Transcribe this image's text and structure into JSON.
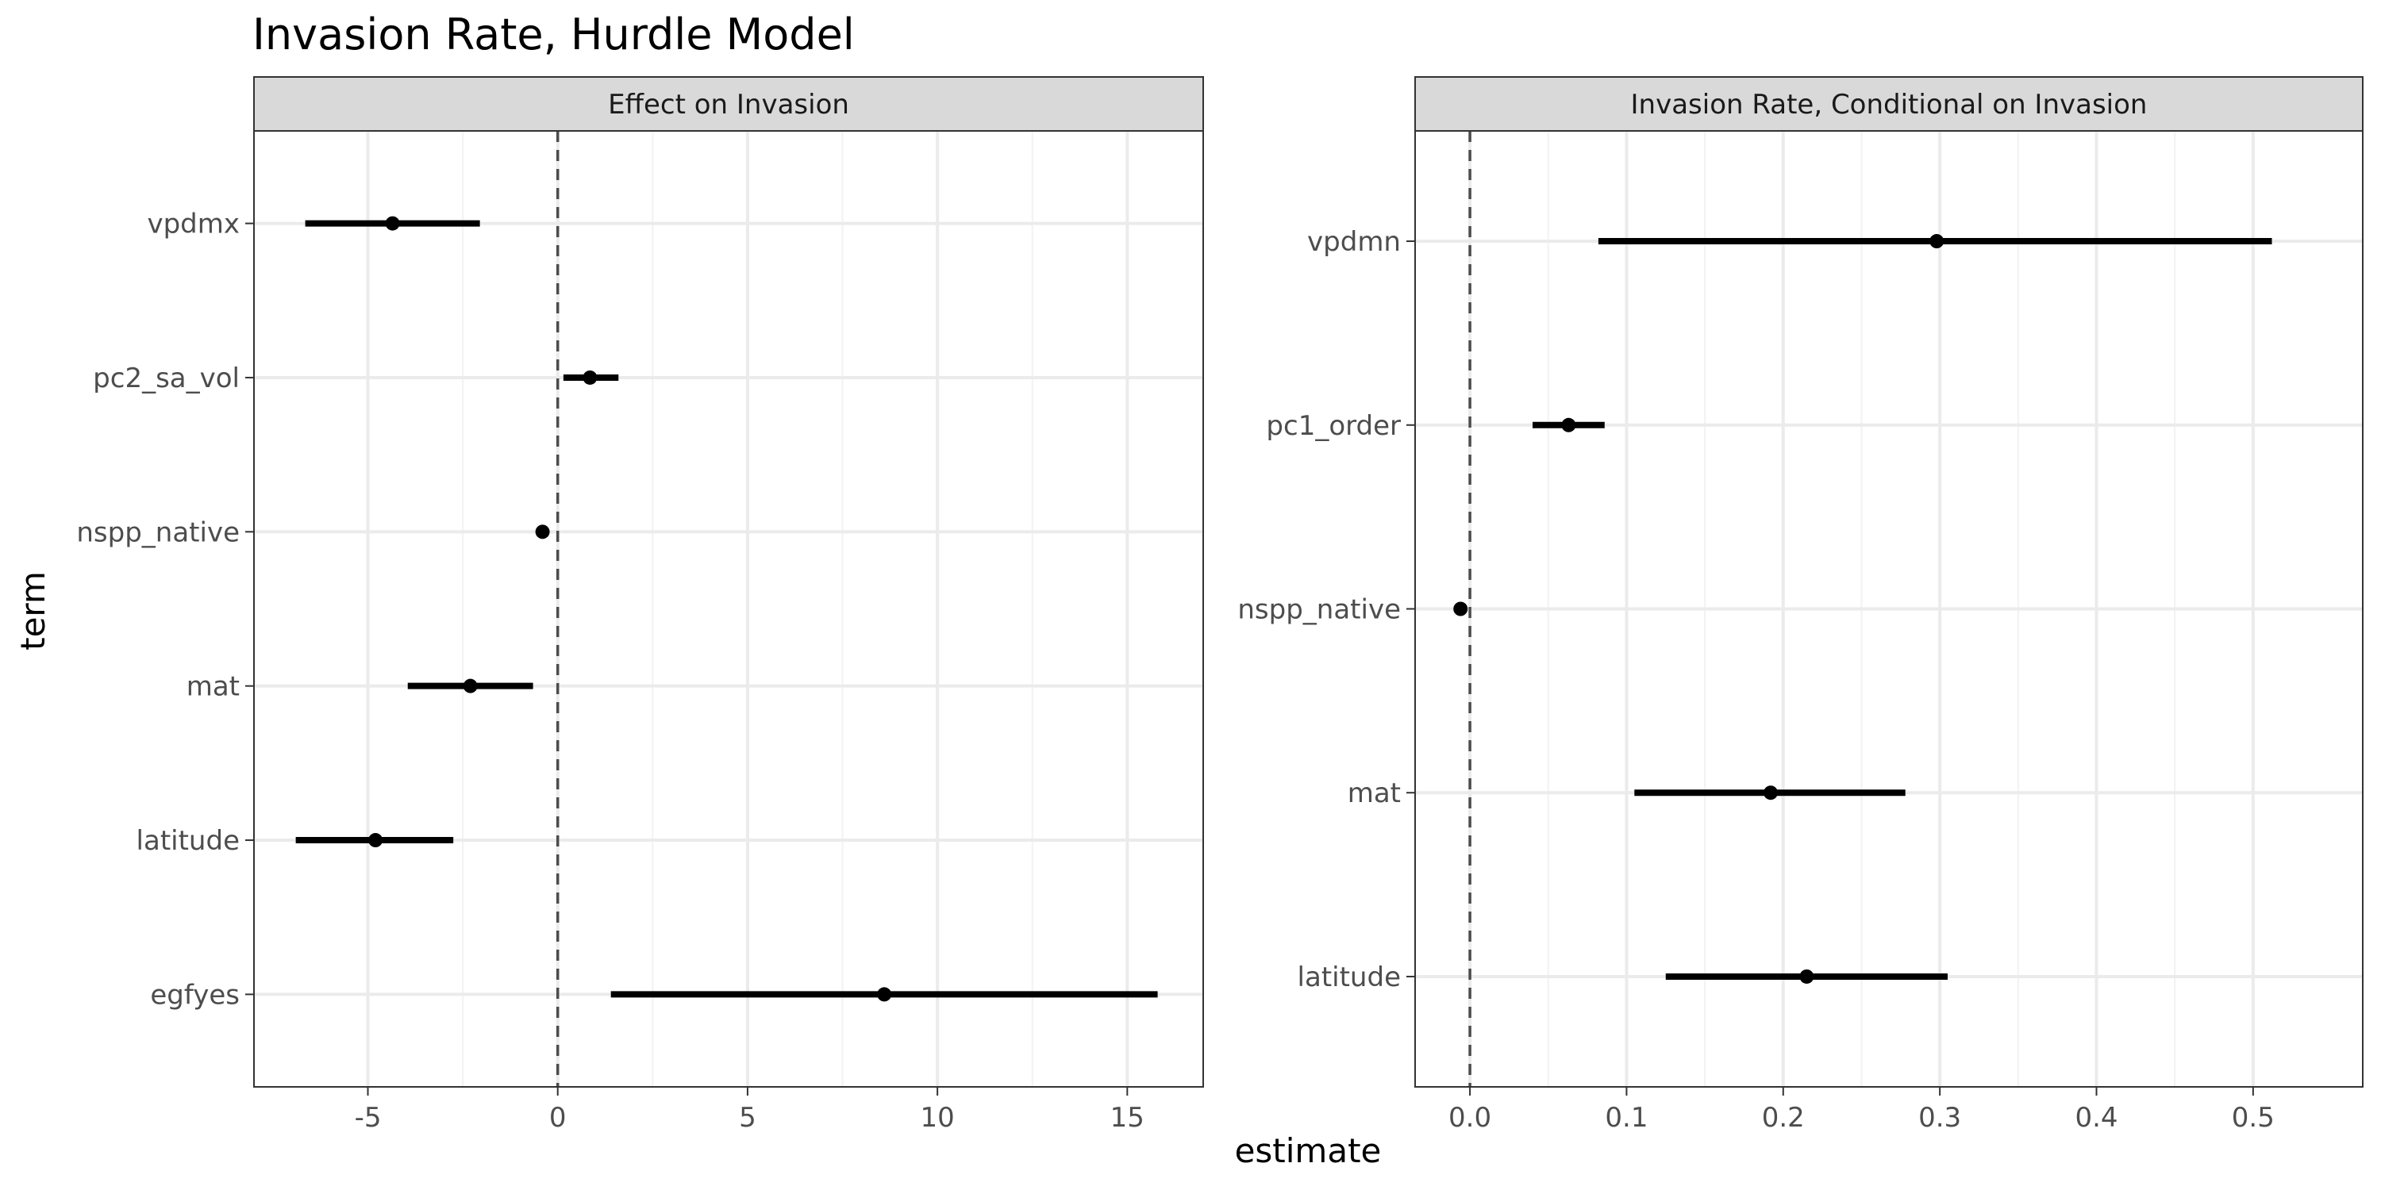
{
  "chart_data": {
    "type": "scatter",
    "title": "Invasion Rate, Hurdle Model",
    "xlabel": "estimate",
    "ylabel": "term",
    "grid": true,
    "reference_line": 0,
    "panels": [
      {
        "strip": "Effect on Invasion",
        "xlim": [
          -8.0,
          17.0
        ],
        "xticks": [
          -5,
          0,
          5,
          10,
          15
        ],
        "xtick_labels": [
          "-5",
          "0",
          "5",
          "10",
          "15"
        ],
        "terms": [
          "egfyes",
          "latitude",
          "mat",
          "nspp_native",
          "pc2_sa_vol",
          "vpdmx"
        ],
        "estimates": [
          8.6,
          -4.8,
          -2.3,
          -0.4,
          0.85,
          -4.35
        ],
        "conf_low": [
          1.4,
          -6.9,
          -3.95,
          -0.4,
          0.15,
          -6.65
        ],
        "conf_high": [
          15.8,
          -2.75,
          -0.65,
          -0.4,
          1.6,
          -2.05
        ]
      },
      {
        "strip": "Invasion Rate, Conditional on Invasion",
        "xlim": [
          -0.035,
          0.57
        ],
        "xticks": [
          0.0,
          0.1,
          0.2,
          0.3,
          0.4,
          0.5
        ],
        "xtick_labels": [
          "0.0",
          "0.1",
          "0.2",
          "0.3",
          "0.4",
          "0.5"
        ],
        "terms": [
          "latitude",
          "mat",
          "nspp_native",
          "pc1_order",
          "vpdmn"
        ],
        "estimates": [
          0.215,
          0.192,
          -0.006,
          0.063,
          0.298
        ],
        "conf_low": [
          0.125,
          0.105,
          -0.006,
          0.04,
          0.082
        ],
        "conf_high": [
          0.305,
          0.278,
          -0.006,
          0.086,
          0.512
        ]
      }
    ]
  }
}
